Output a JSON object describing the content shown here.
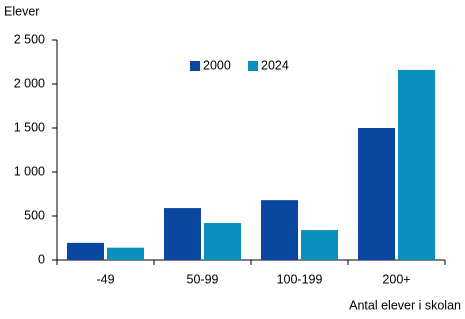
{
  "chart_data": {
    "type": "bar",
    "y_label": "Elever",
    "x_label": "Antal elever i skolan",
    "categories": [
      "-49",
      "50-99",
      "100-199",
      "200+"
    ],
    "series": [
      {
        "name": "2000",
        "color": "#0a47a0",
        "values": [
          195,
          590,
          680,
          1500
        ]
      },
      {
        "name": "2024",
        "color": "#0b8fbd",
        "values": [
          140,
          420,
          340,
          2160
        ]
      }
    ],
    "ylim": [
      0,
      2500
    ],
    "yticks": [
      0,
      500,
      {
        "value": 1000,
        "label": "1 000"
      },
      {
        "value": 1500,
        "label": "1 500"
      },
      {
        "value": 2000,
        "label": "2 000"
      },
      {
        "value": 2500,
        "label": "2 500"
      }
    ],
    "grid": false,
    "legend": "top"
  }
}
